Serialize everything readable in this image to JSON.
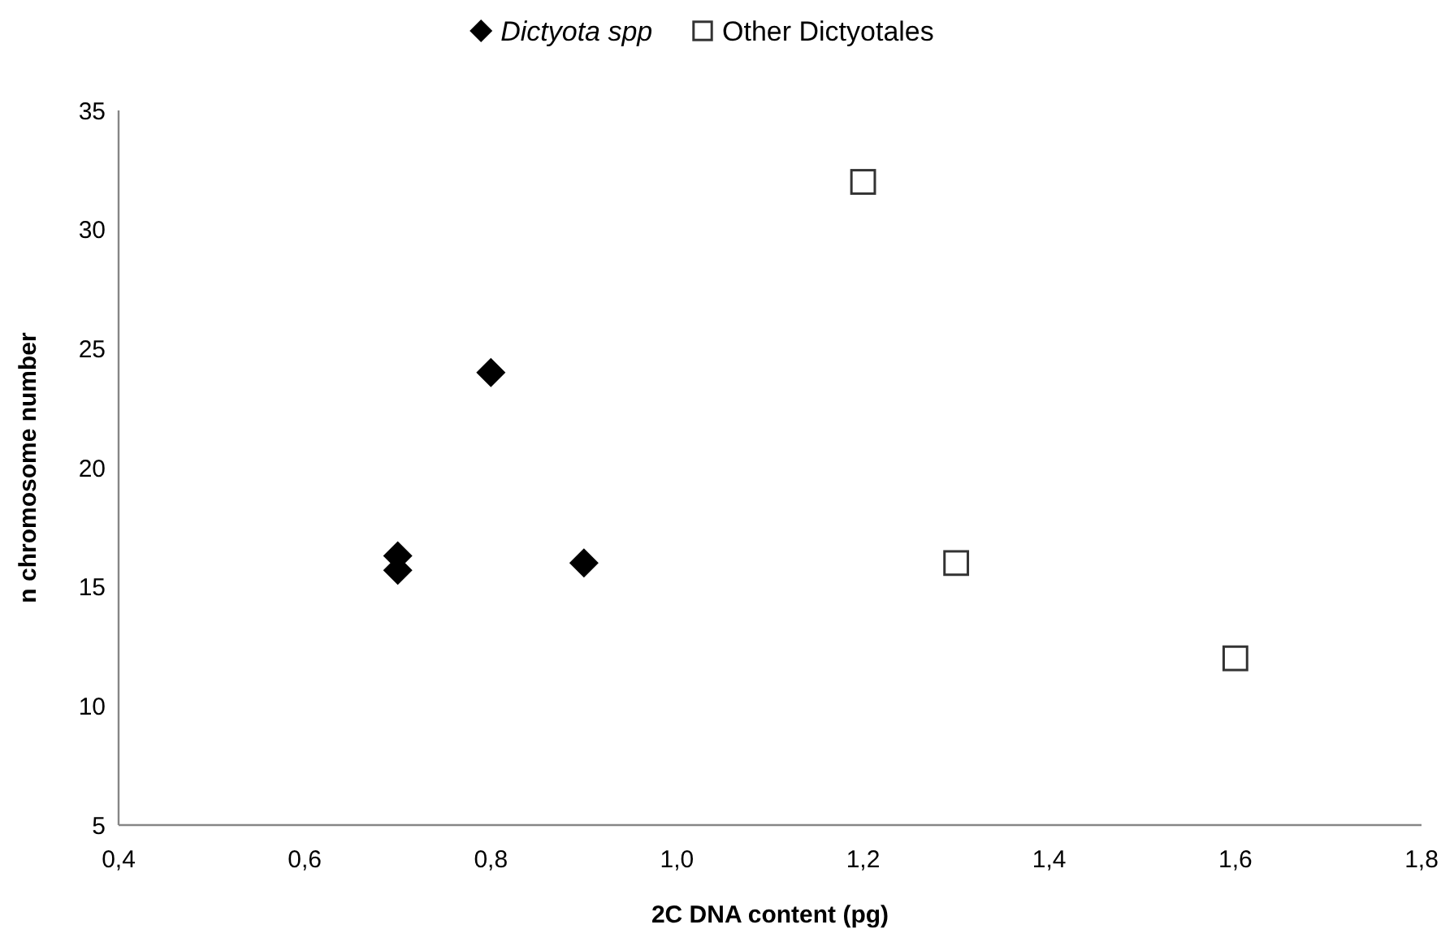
{
  "chart_data": {
    "type": "scatter",
    "xlabel": "2C DNA content (pg)",
    "ylabel": "n chromosome number",
    "xlim": [
      0.4,
      1.8
    ],
    "xticks": [
      {
        "value": 0.4,
        "label": "0,4"
      },
      {
        "value": 0.6,
        "label": "0,6"
      },
      {
        "value": 0.8,
        "label": "0,8"
      },
      {
        "value": 1.0,
        "label": "1,0"
      },
      {
        "value": 1.2,
        "label": "1,2"
      },
      {
        "value": 1.4,
        "label": "1,4"
      },
      {
        "value": 1.6,
        "label": "1,6"
      },
      {
        "value": 1.8,
        "label": "1,8"
      }
    ],
    "ylim": [
      5,
      35
    ],
    "yticks": [
      5,
      10,
      15,
      20,
      25,
      30,
      35
    ],
    "grid": false,
    "legend": "top",
    "series": [
      {
        "name": "Dictyota spp",
        "color": "#000000",
        "marker": "diamond",
        "x": [
          0.7,
          0.7,
          0.8,
          0.9
        ],
        "values": [
          16.3,
          15.7,
          24,
          16
        ]
      },
      {
        "name": "Other Dictyotales",
        "color": "#333333",
        "marker": "square",
        "x": [
          1.2,
          1.3,
          1.6
        ],
        "values": [
          32,
          16,
          12
        ]
      }
    ]
  }
}
